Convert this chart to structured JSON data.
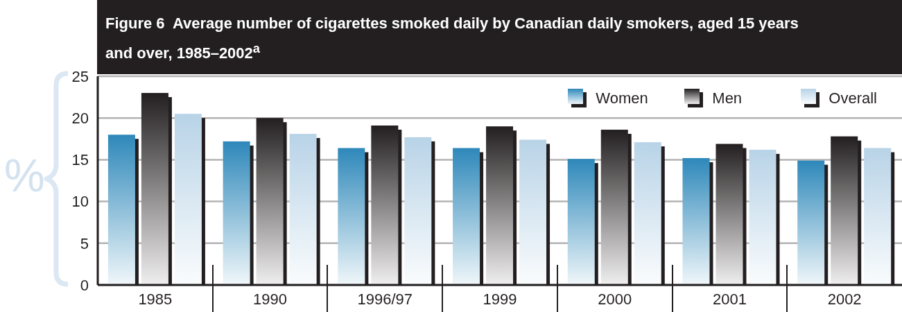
{
  "chart_data": {
    "type": "bar",
    "title": "Figure 6  Average number of cigarettes smoked daily by Canadian daily smokers, aged 15 years and over, 1985–2002$^{a}$",
    "ylabel": "%",
    "categories": [
      "1985",
      "1990",
      "1996/97",
      "1999",
      "2000",
      "2001",
      "2002"
    ],
    "series": [
      {
        "name": "Women",
        "color": "#2e88ba",
        "values": [
          18.0,
          17.2,
          16.4,
          16.4,
          15.1,
          15.2,
          14.9
        ]
      },
      {
        "name": "Men",
        "color": "#231f20",
        "values": [
          23.0,
          20.0,
          19.1,
          19.0,
          18.6,
          16.9,
          17.8
        ]
      },
      {
        "name": "Overall",
        "color": "#b8d3e7",
        "values": [
          20.5,
          18.1,
          17.7,
          17.4,
          17.1,
          16.2,
          16.4
        ]
      }
    ],
    "ylim": [
      0,
      25
    ],
    "yticks": [
      0,
      5,
      10,
      15,
      20,
      25
    ],
    "grid": "y",
    "legend": "top right"
  }
}
